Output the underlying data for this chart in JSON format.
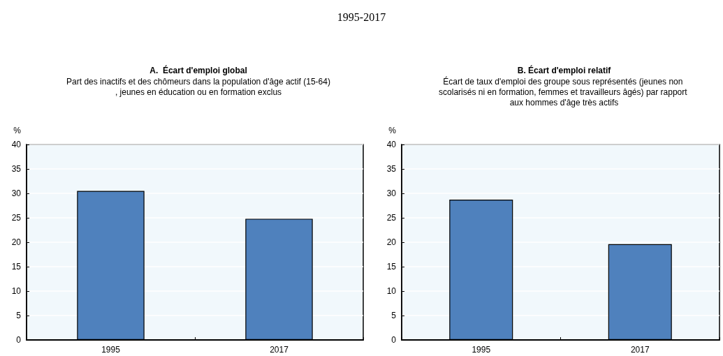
{
  "chart_data": [
    {
      "type": "other",
      "title": "1995-2017"
    },
    {
      "type": "bar",
      "title": "A.  Écart d'emploi global",
      "subtitle": "Part des inactifs et des chômeurs dans la population d'âge actif (15-64), jeunes en éducation ou en formation exclus",
      "ylabel": "%",
      "categories": [
        "1995",
        "2017"
      ],
      "values": [
        30.5,
        24.8
      ],
      "color": "#4f81bd",
      "ylim": [
        0,
        40
      ],
      "yticks": [
        0,
        5,
        10,
        15,
        20,
        25,
        30,
        35,
        40
      ],
      "grid": "y"
    },
    {
      "type": "bar",
      "title": "B. Écart d'emploi relatif",
      "subtitle": "Écart de taux d'emploi des groupe sous représentés (jeunes non scolarisés ni en formation, femmes et travailleurs âgés) par rapport aux hommes d'âge très actifs",
      "ylabel": "%",
      "categories": [
        "1995",
        "2017"
      ],
      "values": [
        28.7,
        19.6
      ],
      "color": "#4f81bd",
      "ylim": [
        0,
        40
      ],
      "yticks": [
        0,
        5,
        10,
        15,
        20,
        25,
        30,
        35,
        40
      ],
      "grid": "y"
    }
  ]
}
